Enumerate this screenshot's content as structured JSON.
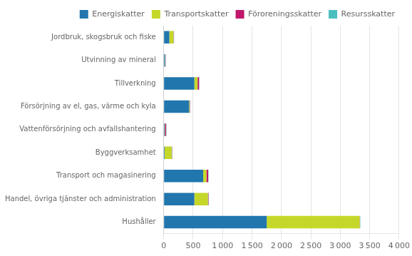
{
  "chart_data": {
    "type": "bar",
    "orientation": "horizontal",
    "stacked": true,
    "categories": [
      "Jordbruk, skogsbruk och fiske",
      "Utvinning av mineral",
      "Tillverkning",
      "Försörjning av el, gas, värme och kyla",
      "Vattenförsörjning och avfallshantering",
      "Byggverksamhet",
      "Transport och magasinering",
      "Handel, övriga tjänster och administration",
      "Hushåller"
    ],
    "series": [
      {
        "name": "Energiskatter",
        "color": "#2176ae",
        "values": [
          95,
          20,
          520,
          430,
          15,
          15,
          670,
          520,
          1750
        ]
      },
      {
        "name": "Transportskatter",
        "color": "#c5d829",
        "values": [
          70,
          5,
          55,
          10,
          5,
          120,
          55,
          230,
          1580
        ]
      },
      {
        "name": "Föroreningsskatter",
        "color": "#c0176b",
        "values": [
          5,
          5,
          25,
          5,
          20,
          5,
          30,
          10,
          5
        ]
      },
      {
        "name": "Resursskatter",
        "color": "#4bbfbf",
        "values": [
          5,
          5,
          5,
          5,
          5,
          5,
          5,
          5,
          5
        ]
      }
    ],
    "xlim": [
      0,
      4000
    ],
    "xticks": [
      0,
      500,
      {
        "value": 1000,
        "label": "1 000"
      },
      {
        "value": 1500,
        "label": "1 500"
      },
      {
        "value": 2000,
        "label": "2 000"
      },
      {
        "value": 2500,
        "label": "2 500"
      },
      {
        "value": 3000,
        "label": "3 000"
      },
      {
        "value": 3500,
        "label": "3 500"
      },
      {
        "value": 4000,
        "label": "4 000"
      }
    ],
    "grid": true,
    "legend": "upper right"
  }
}
